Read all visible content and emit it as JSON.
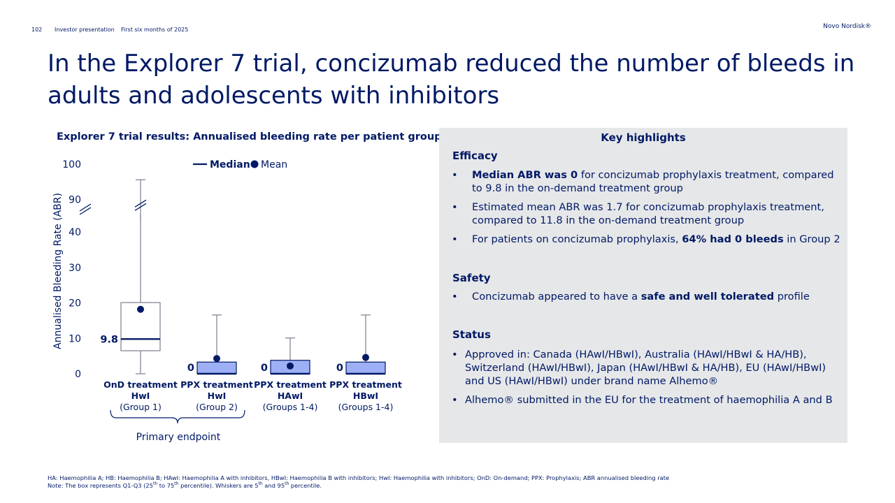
{
  "header": {
    "page_number": "102",
    "presentation": "Investor presentation",
    "period": "First six months of 2025",
    "brand": "Novo Nordisk®"
  },
  "title": "In the Explorer 7 trial, concizumab reduced the number of bleeds in adults and adolescents with inhibitors",
  "chart_data": {
    "type": "box",
    "title": "Explorer 7 trial results: Annualised bleeding rate per patient group",
    "ylabel": "Annualised Bleeding Rate (ABR)",
    "y_axis_break": true,
    "ytick_labels": [
      "0",
      "10",
      "20",
      "30",
      "40",
      "90",
      "100"
    ],
    "legend": {
      "median": "Median",
      "mean": "Mean"
    },
    "colors": {
      "primary": "#001965",
      "box_fill": "#9eb0f5",
      "whisker": "#7a7f8c"
    },
    "groups": [
      {
        "line1": "OnD treatment",
        "line2": "HwI",
        "line3": "(Group 1)",
        "median": 9.8,
        "median_label": "9.8",
        "mean": 18.2,
        "q1": 6.5,
        "q3": 20.1,
        "whisker_low": 0,
        "whisker_high": 95.6,
        "filled": false
      },
      {
        "line1": "PPX treatment",
        "line2": "HwI",
        "line3": "(Group 2)",
        "median": 0,
        "median_label": "0",
        "mean": 4.3,
        "q1": 0,
        "q3": 3.3,
        "whisker_low": 0,
        "whisker_high": 16.6,
        "filled": true
      },
      {
        "line1": "PPX treatment",
        "line2": "HAwI",
        "line3": "(Groups 1-4)",
        "median": 0,
        "median_label": "0",
        "mean": 2.2,
        "q1": 0,
        "q3": 3.8,
        "whisker_low": 0,
        "whisker_high": 10.1,
        "filled": true
      },
      {
        "line1": "PPX treatment",
        "line2": "HBwI",
        "line3": "(Groups 1-4)",
        "median": 0,
        "median_label": "0",
        "mean": 4.6,
        "q1": 0,
        "q3": 3.3,
        "whisker_low": 0,
        "whisker_high": 16.6,
        "filled": true
      }
    ],
    "bracket_label": "Primary endpoint"
  },
  "highlights": {
    "title": "Key highlights",
    "efficacy_heading": "Efficacy",
    "bullet_char": "•",
    "efficacy": [
      {
        "bold": "Median ABR was 0",
        "rest": " for concizumab prophylaxis treatment, compared to 9.8 in the on-demand treatment group"
      },
      {
        "pre": "Estimated mean ABR was 1.7 for concizumab prophylaxis treatment, compared to 11.8 in the on-demand treatment group"
      },
      {
        "pre": "For patients on concizumab prophylaxis, ",
        "bold": "64% had 0 bleeds",
        "rest": " in Group 2"
      }
    ],
    "safety_heading": "Safety",
    "safety": {
      "pre": "Concizumab appeared to have a ",
      "bold": "safe and well tolerated",
      "rest": " profile"
    },
    "status_heading": "Status",
    "status": [
      "Approved in: Canada (HAwI/HBwI), Australia (HAwI/HBwI & HA/HB), Switzerland (HAwI/HBwI), Japan (HAwI/HBwI & HA/HB), EU (HAwI/HBwI) and US (HAwI/HBwI) under brand name Alhemo®",
      "Alhemo® submitted in the EU for the treatment of haemophilia A and B"
    ]
  },
  "footnotes": {
    "line1": "HA: Haemophilia A; HB: Haemophilia B; HAwI: Haemophilia A with inhibitors, HBwI: Haemophilia B with inhibitors; HwI: Haemophilia with inhibitors;  OnD: On-demand; PPX: Prophylaxis; ABR annualised bleeding rate",
    "line2_a": "Note: The box represents Q1-Q3 (25",
    "sup_th": "th",
    "line2_b": " to 75",
    "line2_c": " percentile). Whiskers are 5",
    "line2_d": " and 95",
    "line2_e": " percentile."
  }
}
